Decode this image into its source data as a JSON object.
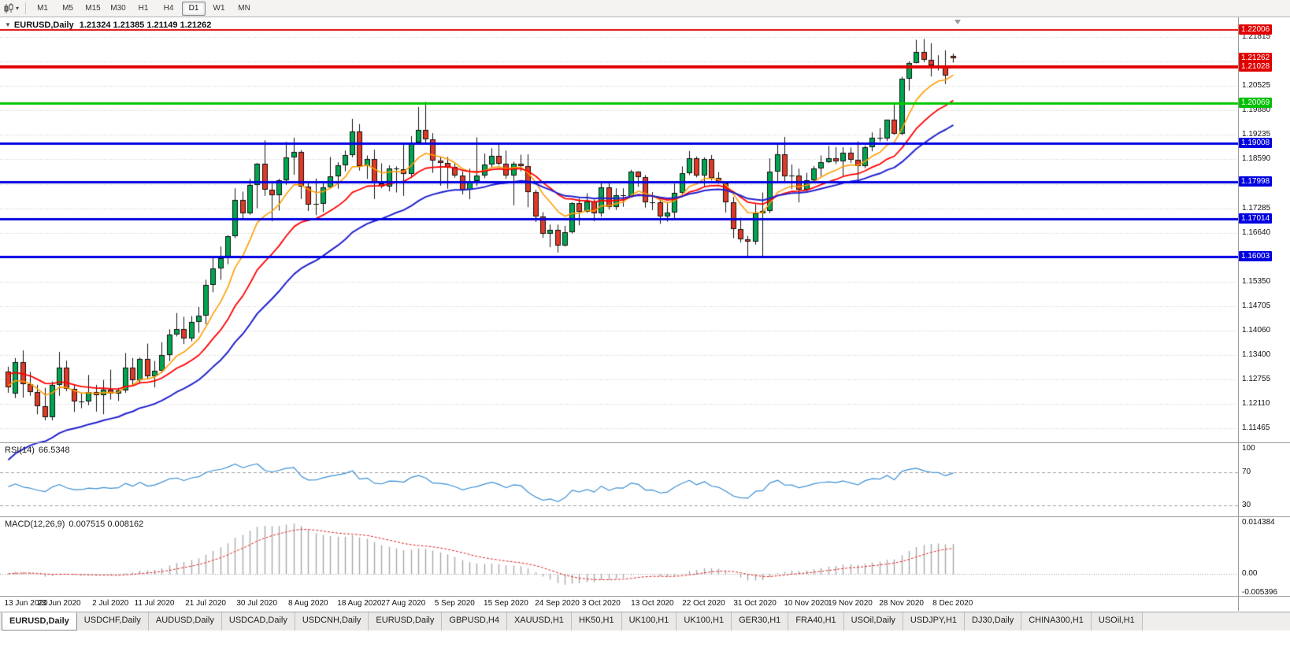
{
  "toolbar": {
    "timeframes": [
      "M1",
      "M5",
      "M15",
      "M30",
      "H1",
      "H4",
      "D1",
      "W1",
      "MN"
    ],
    "active_timeframe": "D1"
  },
  "chart_header": {
    "symbol_title": "EURUSD,Daily",
    "ohlc_text": "1.21324 1.21385 1.21149 1.21262"
  },
  "main_chart": {
    "price_range": {
      "max": 1.2222,
      "min": 1.1118
    },
    "tick_labels": [
      {
        "text": "1.21815",
        "price": 1.21815
      },
      {
        "text": "1.20525",
        "price": 1.20525
      },
      {
        "text": "1.19880",
        "price": 1.1988
      },
      {
        "text": "1.19235",
        "price": 1.19235
      },
      {
        "text": "1.18590",
        "price": 1.1859
      },
      {
        "text": "1.17285",
        "price": 1.17285
      },
      {
        "text": "1.16640",
        "price": 1.1664
      },
      {
        "text": "1.15350",
        "price": 1.1535
      },
      {
        "text": "1.14705",
        "price": 1.14705
      },
      {
        "text": "1.14060",
        "price": 1.1406
      },
      {
        "text": "1.13400",
        "price": 1.134
      },
      {
        "text": "1.12755",
        "price": 1.12755
      },
      {
        "text": "1.12110",
        "price": 1.1211
      },
      {
        "text": "1.11465",
        "price": 1.11465
      }
    ],
    "gridline_prices": [
      1.21815,
      1.2117,
      1.20525,
      1.1988,
      1.19235,
      1.1859,
      1.17938,
      1.17285,
      1.1664,
      1.15995,
      1.1535,
      1.14705,
      1.1406,
      1.134,
      1.12755,
      1.1211,
      1.11465
    ],
    "price_tags": [
      {
        "text": "1.22006",
        "price": 1.22006,
        "color": "#e00000"
      },
      {
        "text": "1.21262",
        "price": 1.21262,
        "color": "#e00000"
      },
      {
        "text": "1.21028",
        "price": 1.21028,
        "color": "#e00000"
      },
      {
        "text": "1.20069",
        "price": 1.20069,
        "color": "#00c000"
      },
      {
        "text": "1.19008",
        "price": 1.19008,
        "color": "#0000e0"
      },
      {
        "text": "1.17998",
        "price": 1.17998,
        "color": "#0000e0"
      },
      {
        "text": "1.17014",
        "price": 1.17014,
        "color": "#0000e0"
      },
      {
        "text": "1.16003",
        "price": 1.16003,
        "color": "#0000e0"
      }
    ]
  },
  "rsi_panel": {
    "label": "RSI(14)",
    "value": "66.5348",
    "levels": [
      {
        "text": "100",
        "value": 100
      },
      {
        "text": "70",
        "value": 70
      },
      {
        "text": "30",
        "value": 30
      }
    ],
    "range": {
      "max": 100,
      "min": 20
    },
    "line_color": "#3a8ed4"
  },
  "macd_panel": {
    "label": "MACD(12,26,9)",
    "values": "0.007515 0.008162",
    "axis_labels": [
      {
        "text": "0.014384",
        "value": 0.014384
      },
      {
        "text": "0.00",
        "value": 0
      },
      {
        "text": "-0.005396",
        "value": -0.005396
      }
    ],
    "range": {
      "max": 0.0149,
      "min": -0.0056
    },
    "histogram_color": "#a8a8a8",
    "signal_color": "#dd2222"
  },
  "tab_bar": {
    "active_index": 0,
    "tabs": [
      "EURUSD,Daily",
      "USDCHF,Daily",
      "AUDUSD,Daily",
      "USDCAD,Daily",
      "USDCNH,Daily",
      "EURUSD,Daily",
      "GBPUSD,H4",
      "XAUUSD,H1",
      "HK50,H1",
      "UK100,H1",
      "UK100,H1",
      "GER30,H1",
      "FRA40,H1",
      "USOil,Daily",
      "USDJPY,H1",
      "DJ30,Daily",
      "CHINA300,H1",
      "USOil,H1"
    ]
  },
  "chart_data": {
    "type": "candlestick",
    "symbol": "EURUSD",
    "timeframe": "Daily",
    "title": "EURUSD,Daily",
    "last_ohlc": {
      "open": 1.21324,
      "high": 1.21385,
      "low": 1.21149,
      "close": 1.21262
    },
    "x_labels": [
      "13 Jun 2020",
      "23 Jun 2020",
      "2 Jul 2020",
      "11 Jul 2020",
      "21 Jul 2020",
      "30 Jul 2020",
      "8 Aug 2020",
      "18 Aug 2020",
      "27 Aug 2020",
      "5 Sep 2020",
      "15 Sep 2020",
      "24 Sep 2020",
      "3 Oct 2020",
      "13 Oct 2020",
      "22 Oct 2020",
      "31 Oct 2020",
      "10 Nov 2020",
      "19 Nov 2020",
      "28 Nov 2020",
      "8 Dec 2020"
    ],
    "candle_colors": {
      "bull": "#00a650",
      "bear": "#e03a26",
      "outline": "#111111"
    },
    "candles": [
      [
        1.1298,
        1.131,
        1.1241,
        1.1256
      ],
      [
        1.1239,
        1.1333,
        1.1227,
        1.1323
      ],
      [
        1.1323,
        1.1353,
        1.1228,
        1.1264
      ],
      [
        1.1264,
        1.1296,
        1.1233,
        1.1243
      ],
      [
        1.1243,
        1.1262,
        1.1184,
        1.1205
      ],
      [
        1.1205,
        1.1254,
        1.1168,
        1.1177
      ],
      [
        1.1177,
        1.1271,
        1.1168,
        1.1261
      ],
      [
        1.1261,
        1.1349,
        1.1233,
        1.1308
      ],
      [
        1.1308,
        1.1326,
        1.1245,
        1.1251
      ],
      [
        1.1251,
        1.1262,
        1.119,
        1.1218
      ],
      [
        1.1218,
        1.1239,
        1.12,
        1.1219
      ],
      [
        1.1219,
        1.1288,
        1.1208,
        1.1242
      ],
      [
        1.1242,
        1.1262,
        1.1191,
        1.1234
      ],
      [
        1.1234,
        1.1275,
        1.1184,
        1.125
      ],
      [
        1.125,
        1.1302,
        1.1223,
        1.1239
      ],
      [
        1.1239,
        1.1254,
        1.1219,
        1.1248
      ],
      [
        1.1248,
        1.1346,
        1.1241,
        1.1308
      ],
      [
        1.1308,
        1.1333,
        1.1259,
        1.1274
      ],
      [
        1.1274,
        1.1334,
        1.1265,
        1.133
      ],
      [
        1.133,
        1.1371,
        1.1276,
        1.1284
      ],
      [
        1.1284,
        1.1325,
        1.1255,
        1.13
      ],
      [
        1.13,
        1.1375,
        1.1293,
        1.1341
      ],
      [
        1.1341,
        1.1409,
        1.1325,
        1.1396
      ],
      [
        1.1396,
        1.1452,
        1.139,
        1.141
      ],
      [
        1.141,
        1.1442,
        1.137,
        1.1384
      ],
      [
        1.1384,
        1.1444,
        1.1377,
        1.1428
      ],
      [
        1.1428,
        1.1468,
        1.14,
        1.1446
      ],
      [
        1.1446,
        1.154,
        1.1422,
        1.1526
      ],
      [
        1.1526,
        1.1601,
        1.1507,
        1.157
      ],
      [
        1.157,
        1.1628,
        1.154,
        1.1598
      ],
      [
        1.1598,
        1.1658,
        1.1581,
        1.1656
      ],
      [
        1.1656,
        1.1782,
        1.165,
        1.1751
      ],
      [
        1.1751,
        1.1773,
        1.17,
        1.1716
      ],
      [
        1.1716,
        1.1807,
        1.1712,
        1.1791
      ],
      [
        1.1791,
        1.1849,
        1.1729,
        1.1847
      ],
      [
        1.1847,
        1.1909,
        1.1762,
        1.1778
      ],
      [
        1.1778,
        1.1798,
        1.1695,
        1.1763
      ],
      [
        1.1763,
        1.1807,
        1.1723,
        1.1803
      ],
      [
        1.1803,
        1.1905,
        1.1791,
        1.1863
      ],
      [
        1.1863,
        1.1916,
        1.1818,
        1.1878
      ],
      [
        1.1878,
        1.1883,
        1.1754,
        1.1787
      ],
      [
        1.1787,
        1.1799,
        1.1722,
        1.1738
      ],
      [
        1.1738,
        1.1808,
        1.1711,
        1.174
      ],
      [
        1.174,
        1.1796,
        1.1719,
        1.1784
      ],
      [
        1.1784,
        1.1865,
        1.1782,
        1.1813
      ],
      [
        1.1813,
        1.1851,
        1.1781,
        1.1842
      ],
      [
        1.1842,
        1.1882,
        1.1827,
        1.1871
      ],
      [
        1.1871,
        1.1966,
        1.1864,
        1.1933
      ],
      [
        1.1933,
        1.1952,
        1.1829,
        1.184
      ],
      [
        1.184,
        1.1869,
        1.1807,
        1.1859
      ],
      [
        1.1859,
        1.1884,
        1.1754,
        1.1796
      ],
      [
        1.1796,
        1.1848,
        1.1782,
        1.1787
      ],
      [
        1.1787,
        1.1843,
        1.1774,
        1.1834
      ],
      [
        1.1834,
        1.184,
        1.1771,
        1.1832
      ],
      [
        1.1832,
        1.1901,
        1.1762,
        1.1821
      ],
      [
        1.1821,
        1.192,
        1.1809,
        1.1903
      ],
      [
        1.1903,
        1.1997,
        1.1899,
        1.1936
      ],
      [
        1.1936,
        1.2011,
        1.1901,
        1.1911
      ],
      [
        1.1911,
        1.1928,
        1.1823,
        1.1855
      ],
      [
        1.1855,
        1.1864,
        1.1789,
        1.185
      ],
      [
        1.185,
        1.1865,
        1.1781,
        1.1839
      ],
      [
        1.1839,
        1.1848,
        1.181,
        1.1815
      ],
      [
        1.1815,
        1.1827,
        1.1766,
        1.1778
      ],
      [
        1.1778,
        1.1834,
        1.1753,
        1.1801
      ],
      [
        1.1801,
        1.1917,
        1.1788,
        1.1815
      ],
      [
        1.1815,
        1.1874,
        1.1809,
        1.1845
      ],
      [
        1.1845,
        1.1888,
        1.1838,
        1.1867
      ],
      [
        1.1867,
        1.19,
        1.1843,
        1.1847
      ],
      [
        1.1847,
        1.1882,
        1.1807,
        1.1816
      ],
      [
        1.1816,
        1.1852,
        1.1737,
        1.1847
      ],
      [
        1.1847,
        1.1871,
        1.1827,
        1.184
      ],
      [
        1.184,
        1.1872,
        1.1732,
        1.1772
      ],
      [
        1.1772,
        1.1778,
        1.1693,
        1.1707
      ],
      [
        1.1707,
        1.1719,
        1.1651,
        1.1661
      ],
      [
        1.1661,
        1.1686,
        1.1626,
        1.1672
      ],
      [
        1.1672,
        1.1686,
        1.1612,
        1.1631
      ],
      [
        1.1631,
        1.1683,
        1.1628,
        1.1665
      ],
      [
        1.1665,
        1.1745,
        1.1662,
        1.1742
      ],
      [
        1.1742,
        1.1755,
        1.1684,
        1.172
      ],
      [
        1.172,
        1.1769,
        1.1717,
        1.1748
      ],
      [
        1.1748,
        1.1752,
        1.1695,
        1.1716
      ],
      [
        1.1716,
        1.1797,
        1.1707,
        1.1785
      ],
      [
        1.1785,
        1.1798,
        1.1726,
        1.1733
      ],
      [
        1.1733,
        1.1782,
        1.1725,
        1.1764
      ],
      [
        1.1764,
        1.1782,
        1.1733,
        1.1761
      ],
      [
        1.1761,
        1.1831,
        1.1758,
        1.1826
      ],
      [
        1.1826,
        1.1827,
        1.1786,
        1.1812
      ],
      [
        1.1812,
        1.1817,
        1.1731,
        1.1745
      ],
      [
        1.1745,
        1.1772,
        1.1724,
        1.1746
      ],
      [
        1.1746,
        1.1758,
        1.1688,
        1.1708
      ],
      [
        1.1708,
        1.1746,
        1.1694,
        1.1718
      ],
      [
        1.1718,
        1.1794,
        1.1703,
        1.177
      ],
      [
        1.177,
        1.184,
        1.176,
        1.1823
      ],
      [
        1.1823,
        1.1881,
        1.1817,
        1.1862
      ],
      [
        1.1862,
        1.1866,
        1.1811,
        1.1815
      ],
      [
        1.1815,
        1.1864,
        1.1786,
        1.186
      ],
      [
        1.186,
        1.187,
        1.1803,
        1.181
      ],
      [
        1.181,
        1.1825,
        1.1794,
        1.1795
      ],
      [
        1.1795,
        1.18,
        1.1718,
        1.1746
      ],
      [
        1.1746,
        1.1759,
        1.165,
        1.1674
      ],
      [
        1.1674,
        1.1704,
        1.1639,
        1.1647
      ],
      [
        1.1647,
        1.1656,
        1.1603,
        1.164
      ],
      [
        1.164,
        1.174,
        1.1633,
        1.1715
      ],
      [
        1.1715,
        1.1771,
        1.1602,
        1.1723
      ],
      [
        1.1723,
        1.1861,
        1.1716,
        1.1827
      ],
      [
        1.1827,
        1.1898,
        1.1795,
        1.1873
      ],
      [
        1.1873,
        1.1918,
        1.1795,
        1.1813
      ],
      [
        1.1813,
        1.1845,
        1.178,
        1.1815
      ],
      [
        1.1815,
        1.1834,
        1.1745,
        1.1779
      ],
      [
        1.1779,
        1.1823,
        1.1771,
        1.1804
      ],
      [
        1.1804,
        1.1841,
        1.1799,
        1.1834
      ],
      [
        1.1834,
        1.1869,
        1.1814,
        1.1852
      ],
      [
        1.1852,
        1.1894,
        1.1849,
        1.1862
      ],
      [
        1.1862,
        1.1891,
        1.1846,
        1.1854
      ],
      [
        1.1854,
        1.1891,
        1.1815,
        1.1876
      ],
      [
        1.1876,
        1.189,
        1.1849,
        1.1857
      ],
      [
        1.1857,
        1.1906,
        1.1799,
        1.184
      ],
      [
        1.184,
        1.1895,
        1.1835,
        1.189
      ],
      [
        1.189,
        1.193,
        1.188,
        1.1916
      ],
      [
        1.1916,
        1.1941,
        1.1906,
        1.1913
      ],
      [
        1.1913,
        1.1964,
        1.1907,
        1.1963
      ],
      [
        1.1963,
        1.2003,
        1.1924,
        1.1927
      ],
      [
        1.1927,
        1.2077,
        1.1923,
        1.2071
      ],
      [
        1.2071,
        1.2118,
        1.204,
        1.2114
      ],
      [
        1.2114,
        1.2175,
        1.2113,
        1.2143
      ],
      [
        1.2143,
        1.2177,
        1.2116,
        1.2121
      ],
      [
        1.2121,
        1.2166,
        1.2078,
        1.2108
      ],
      [
        1.2108,
        1.2134,
        1.2094,
        1.2106
      ],
      [
        1.2106,
        1.2147,
        1.2058,
        1.208
      ],
      [
        1.21324,
        1.21385,
        1.21149,
        1.21262
      ]
    ],
    "moving_averages": [
      {
        "name": "fast-ema",
        "period": 8,
        "color": "#ff9d00",
        "seed": 1.126,
        "width": 1.6
      },
      {
        "name": "medium-ema",
        "period": 17,
        "color": "#ff0000",
        "seed": 1.1295,
        "width": 1.8
      },
      {
        "name": "slow-ema",
        "period": 30,
        "color": "#2020cf",
        "seed": 1.105,
        "width": 2.0
      }
    ],
    "hlines": [
      {
        "price": 1.22006,
        "color": "#e00000",
        "width": 2
      },
      {
        "price": 1.21028,
        "color": "#e00000",
        "width": 4
      },
      {
        "price": 1.20069,
        "color": "#00c800",
        "width": 3
      },
      {
        "price": 1.19008,
        "color": "#0000e0",
        "width": 3
      },
      {
        "price": 1.17998,
        "color": "#0000e0",
        "width": 3
      },
      {
        "price": 1.17014,
        "color": "#0000e0",
        "width": 3
      },
      {
        "price": 1.16003,
        "color": "#0000e0",
        "width": 3
      }
    ],
    "indicators": [
      {
        "name": "RSI",
        "params": [
          14
        ],
        "display_value": 66.5348
      },
      {
        "name": "MACD",
        "params": [
          12,
          26,
          9
        ],
        "display_values": [
          0.007515,
          0.008162
        ]
      }
    ]
  }
}
